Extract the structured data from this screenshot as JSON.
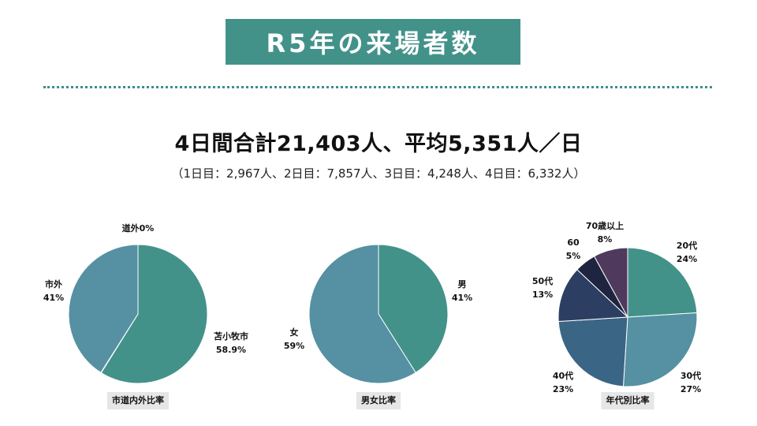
{
  "title": "R5年の来場者数",
  "headline": "4日間合計21,403人、平均5,351人／日",
  "subline": "（1日目：2,967人、2日目：7,857人、3日目：4,248人、4日目：6,332人）",
  "chart_data": [
    {
      "type": "pie",
      "caption": "市道内外比率",
      "start_angle": 0,
      "slices": [
        {
          "name": "苫小牧市",
          "pct_label": "58.9%",
          "value": 58.9,
          "color": "#42928a"
        },
        {
          "name": "道外",
          "pct_label": "0%",
          "value": 0.1,
          "color": "#4a8c8c"
        },
        {
          "name": "市外",
          "pct_label": "41%",
          "value": 41,
          "color": "#5590a3"
        }
      ]
    },
    {
      "type": "pie",
      "caption": "男女比率",
      "start_angle": 0,
      "slices": [
        {
          "name": "男",
          "pct_label": "41%",
          "value": 41,
          "color": "#42928a"
        },
        {
          "name": "女",
          "pct_label": "59%",
          "value": 59,
          "color": "#5590a3"
        }
      ]
    },
    {
      "type": "pie",
      "caption": "年代別比率",
      "start_angle": 0,
      "slices": [
        {
          "name": "20代",
          "pct_label": "24%",
          "value": 24,
          "color": "#42928a"
        },
        {
          "name": "30代",
          "pct_label": "27%",
          "value": 27,
          "color": "#5590a3"
        },
        {
          "name": "40代",
          "pct_label": "23%",
          "value": 23,
          "color": "#3a6585"
        },
        {
          "name": "50代",
          "pct_label": "13%",
          "value": 13,
          "color": "#2c3f63"
        },
        {
          "name": "60",
          "pct_label": "5%",
          "value": 5,
          "color": "#1f2440"
        },
        {
          "name": "70歳以上",
          "pct_label": "8%",
          "value": 8,
          "color": "#4f3a5e"
        }
      ]
    }
  ]
}
